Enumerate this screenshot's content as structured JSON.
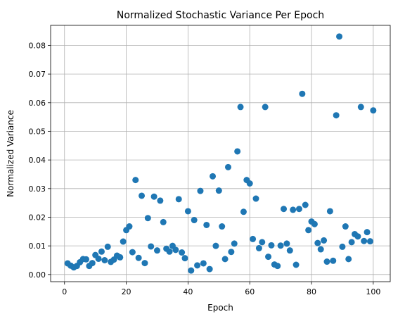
{
  "chart_data": {
    "type": "scatter",
    "title": "Normalized Stochastic Variance Per Epoch",
    "xlabel": "Epoch",
    "ylabel": "Normalized Variance",
    "xlim": [
      -4.5,
      105.5
    ],
    "ylim": [
      -0.0025,
      0.087
    ],
    "xticks": [
      0,
      20,
      40,
      60,
      80,
      100
    ],
    "xtick_labels": [
      "0",
      "20",
      "40",
      "60",
      "80",
      "100"
    ],
    "yticks": [
      0.0,
      0.01,
      0.02,
      0.03,
      0.04,
      0.05,
      0.06,
      0.07,
      0.08
    ],
    "ytick_labels": [
      "0.00",
      "0.01",
      "0.02",
      "0.03",
      "0.04",
      "0.05",
      "0.06",
      "0.07",
      "0.08"
    ],
    "grid": true,
    "marker_color": "#1f77b4",
    "series": [
      {
        "x": [
          1,
          2,
          3,
          4,
          5,
          6,
          7,
          8,
          9,
          10,
          11,
          12,
          13,
          14,
          15,
          16,
          17,
          18,
          19,
          20,
          21,
          22,
          23,
          24,
          25,
          26,
          27,
          28,
          29,
          30,
          31,
          32,
          33,
          34,
          35,
          36,
          37,
          38,
          39,
          40,
          41,
          42,
          43,
          44,
          45,
          46,
          47,
          48,
          49,
          50,
          51,
          52,
          53,
          54,
          55,
          56,
          57,
          58,
          59,
          60,
          61,
          62,
          63,
          64,
          65,
          66,
          67,
          68,
          69,
          70,
          71,
          72,
          73,
          74,
          75,
          76,
          77,
          78,
          79,
          80,
          81,
          82,
          83,
          84,
          85,
          86,
          87,
          88,
          89,
          90,
          91,
          92,
          93,
          94,
          95,
          96,
          97,
          98,
          99,
          100
        ],
        "y": [
          0.0039,
          0.0031,
          0.0025,
          0.003,
          0.0043,
          0.0054,
          0.0053,
          0.003,
          0.004,
          0.0068,
          0.0055,
          0.008,
          0.005,
          0.0097,
          0.0044,
          0.0052,
          0.0066,
          0.006,
          0.0115,
          0.0155,
          0.0168,
          0.0078,
          0.033,
          0.0058,
          0.0275,
          0.004,
          0.0197,
          0.0098,
          0.0272,
          0.0084,
          0.0258,
          0.0183,
          0.009,
          0.008,
          0.01,
          0.0086,
          0.0263,
          0.0077,
          0.0057,
          0.0221,
          0.0014,
          0.019,
          0.0032,
          0.0292,
          0.0039,
          0.0173,
          0.0019,
          0.0343,
          0.01,
          0.0293,
          0.0168,
          0.0054,
          0.0375,
          0.0079,
          0.0108,
          0.043,
          0.0585,
          0.0219,
          0.033,
          0.0318,
          0.0124,
          0.0265,
          0.0092,
          0.0113,
          0.0585,
          0.0062,
          0.0102,
          0.0035,
          0.003,
          0.0101,
          0.0229,
          0.0108,
          0.0084,
          0.0226,
          0.0034,
          0.0229,
          0.0631,
          0.0243,
          0.0155,
          0.0185,
          0.0176,
          0.011,
          0.0088,
          0.0119,
          0.0045,
          0.0221,
          0.0048,
          0.0556,
          0.0831,
          0.0097,
          0.0168,
          0.0054,
          0.0113,
          0.0141,
          0.0133,
          0.0585,
          0.0117,
          0.0148,
          0.0116,
          0.0573
        ]
      }
    ]
  }
}
